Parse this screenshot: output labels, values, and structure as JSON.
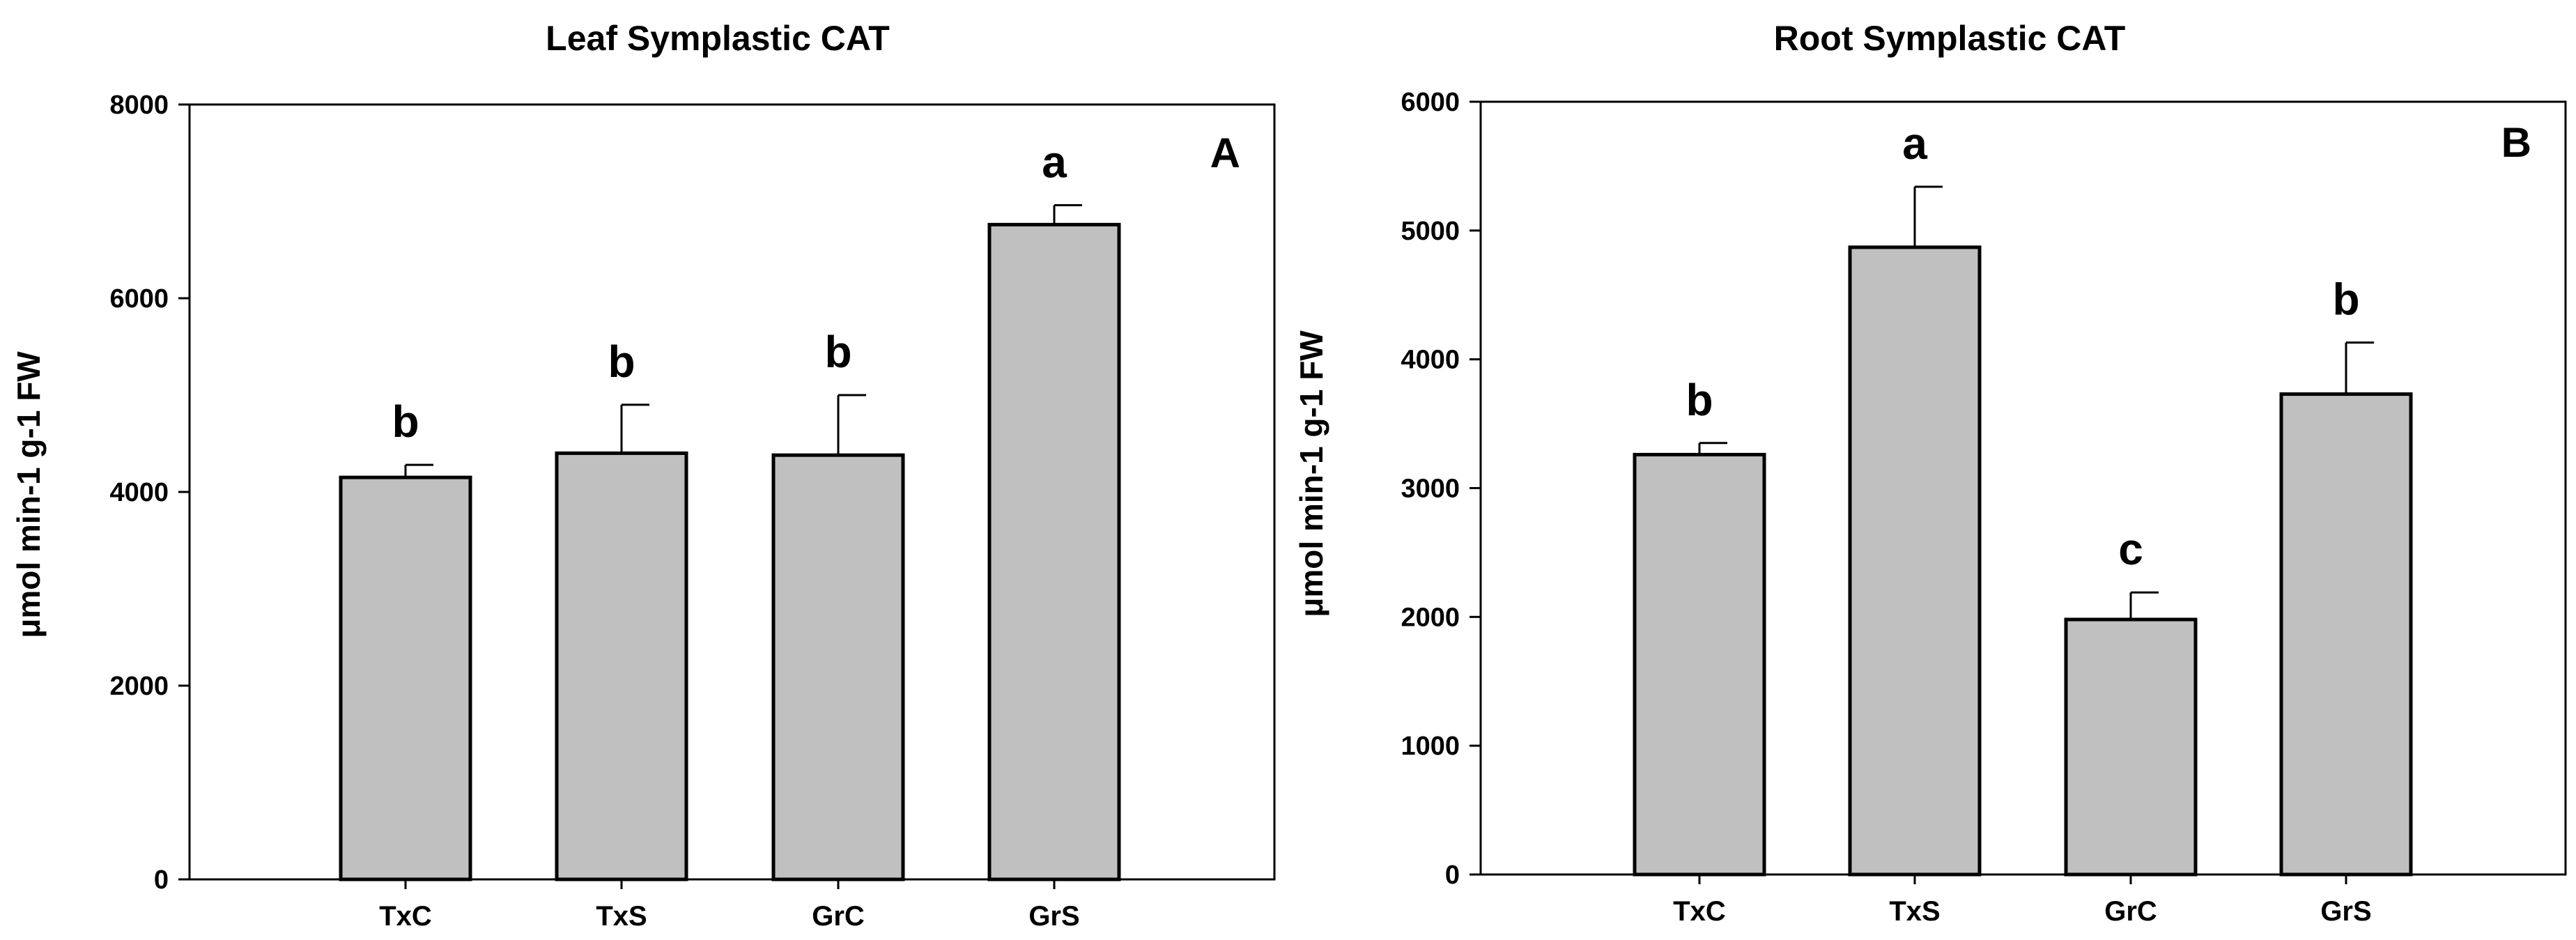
{
  "chart_data": [
    {
      "type": "bar",
      "title": "Leaf Symplastic CAT",
      "panel_label": "A",
      "xlabel": "",
      "ylabel": "μmol min-1 g-1 FW",
      "categories": [
        "TxC",
        "TxS",
        "GrC",
        "GrS"
      ],
      "values": [
        4150,
        4400,
        4380,
        6760
      ],
      "errors": [
        130,
        500,
        620,
        200
      ],
      "significance": [
        "b",
        "b",
        "b",
        "a"
      ],
      "ylim": [
        0,
        8000
      ],
      "yticks": [
        "0",
        "2000",
        "4000",
        "6000",
        "8000"
      ],
      "grid": false,
      "bar_color": "#c0c0c0"
    },
    {
      "type": "bar",
      "title": "Root Symplastic CAT",
      "panel_label": "B",
      "xlabel": "",
      "ylabel": "μmol min-1 g-1 FW",
      "categories": [
        "TxC",
        "TxS",
        "GrC",
        "GrS"
      ],
      "values": [
        3260,
        4870,
        1980,
        3730
      ],
      "errors": [
        90,
        470,
        210,
        400
      ],
      "significance": [
        "b",
        "a",
        "c",
        "b"
      ],
      "ylim": [
        0,
        6000
      ],
      "yticks": [
        "0",
        "1000",
        "2000",
        "3000",
        "4000",
        "5000",
        "6000"
      ],
      "grid": false,
      "bar_color": "#c0c0c0"
    }
  ]
}
